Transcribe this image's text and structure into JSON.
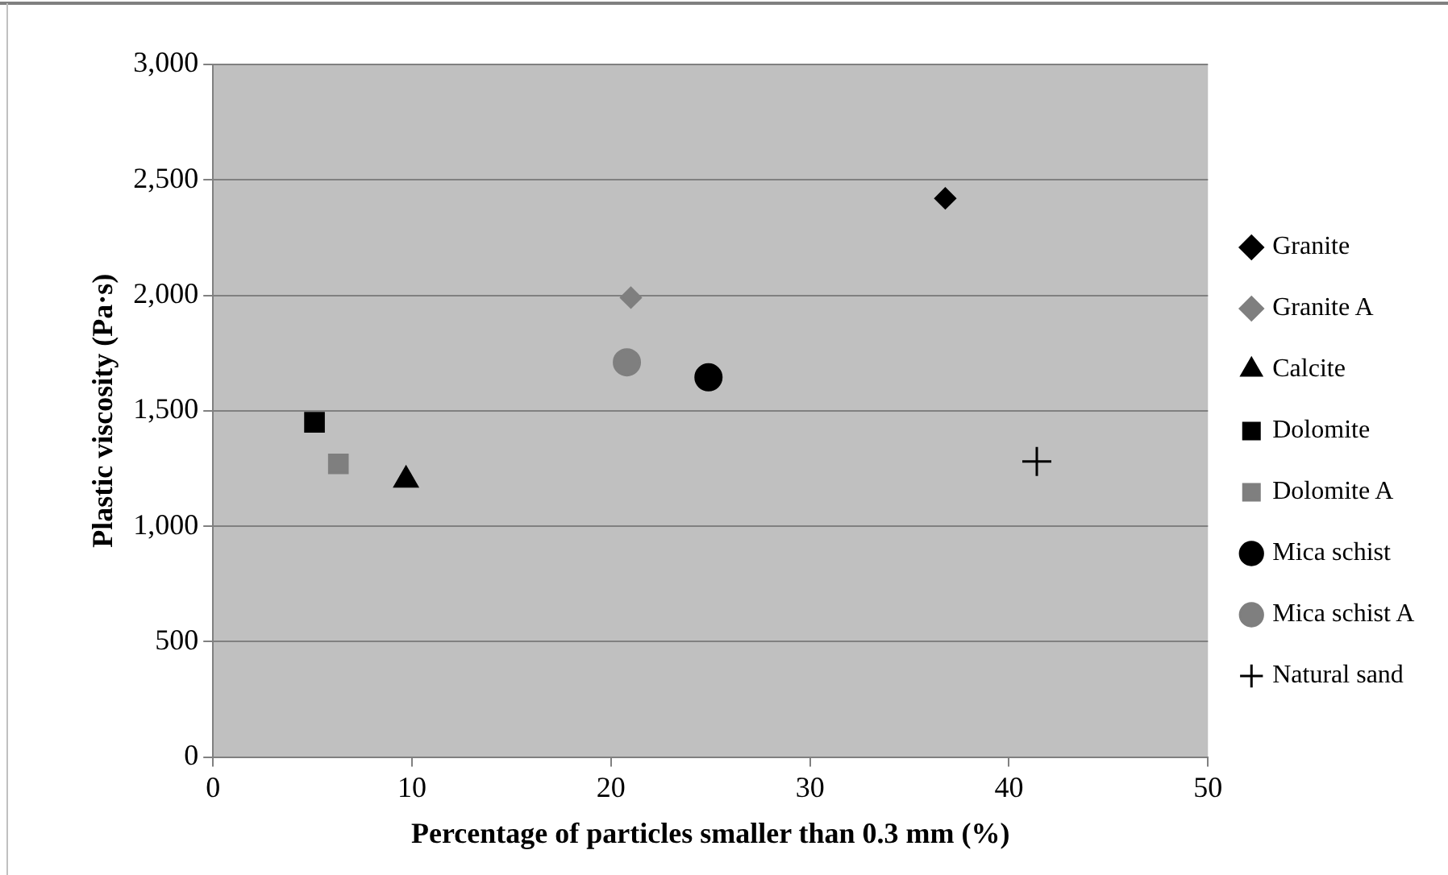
{
  "chart_data": {
    "type": "scatter",
    "xlabel": "Percentage of particles smaller than 0.3 mm (%)",
    "ylabel": "Plastic viscosity (Pa·s)",
    "xlim": [
      0,
      50
    ],
    "xticks": [
      0,
      10,
      20,
      30,
      40,
      50
    ],
    "ylim": [
      0,
      3000
    ],
    "yticks": [
      0,
      500,
      {
        "value": 1000,
        "label": "1,000"
      },
      {
        "value": 1500,
        "label": "1,500"
      },
      {
        "value": 2000,
        "label": "2,000"
      },
      {
        "value": 2500,
        "label": "2,500"
      },
      {
        "value": 3000,
        "label": "3,000"
      }
    ],
    "grid": "y",
    "legend": "right",
    "series": [
      {
        "name": "Granite",
        "color": "#000000",
        "marker": "diamond",
        "x": [
          36.8
        ],
        "values": [
          2420
        ]
      },
      {
        "name": "Granite A",
        "color": "#7f7f7f",
        "marker": "diamond",
        "x": [
          21
        ],
        "values": [
          1990
        ]
      },
      {
        "name": "Calcite",
        "color": "#000000",
        "marker": "triangle",
        "x": [
          9.7
        ],
        "values": [
          1200
        ]
      },
      {
        "name": "Dolomite",
        "color": "#000000",
        "marker": "square",
        "x": [
          5.1
        ],
        "values": [
          1450
        ]
      },
      {
        "name": "Dolomite A",
        "color": "#7f7f7f",
        "marker": "square",
        "x": [
          6.3
        ],
        "values": [
          1270
        ]
      },
      {
        "name": "Mica schist",
        "color": "#000000",
        "marker": "circle",
        "x": [
          24.9
        ],
        "values": [
          1645
        ]
      },
      {
        "name": "Mica schist A",
        "color": "#7f7f7f",
        "marker": "circle",
        "x": [
          20.8
        ],
        "values": [
          1710
        ]
      },
      {
        "name": "Natural sand",
        "color": "#000000",
        "marker": "cross",
        "x": [
          41.4
        ],
        "values": [
          1280
        ]
      }
    ]
  }
}
